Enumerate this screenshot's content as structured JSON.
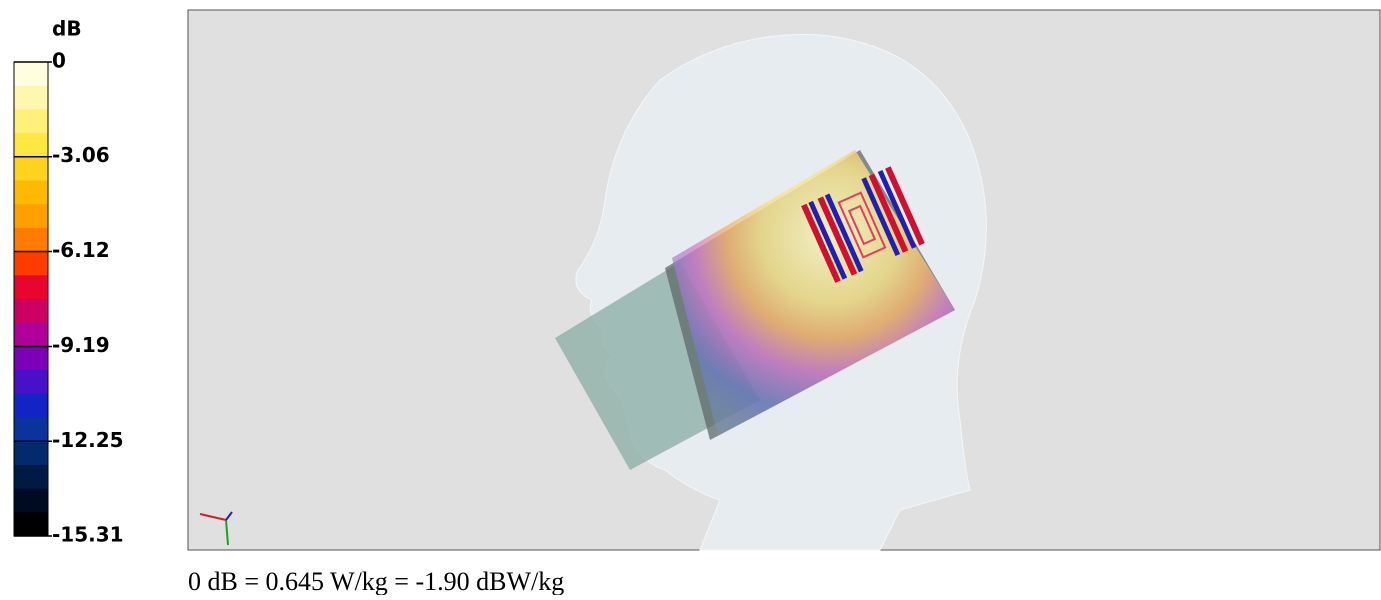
{
  "legend": {
    "unit": "dB",
    "ticks": [
      0,
      -3.06,
      -6.12,
      -9.19,
      -12.25,
      -15.31
    ],
    "colors": [
      "#ffffe0",
      "#fff6b0",
      "#fff07a",
      "#ffe640",
      "#ffd21e",
      "#ffba00",
      "#ffa000",
      "#ff7c00",
      "#ff3c00",
      "#e8062e",
      "#cc0062",
      "#b0009a",
      "#7c00b8",
      "#4a10c8",
      "#1424c4",
      "#0a349c",
      "#022a6c",
      "#001a44",
      "#000a20",
      "#000000"
    ]
  },
  "caption": "0 dB = 0.645 W/kg = -1.90 dBW/kg"
}
